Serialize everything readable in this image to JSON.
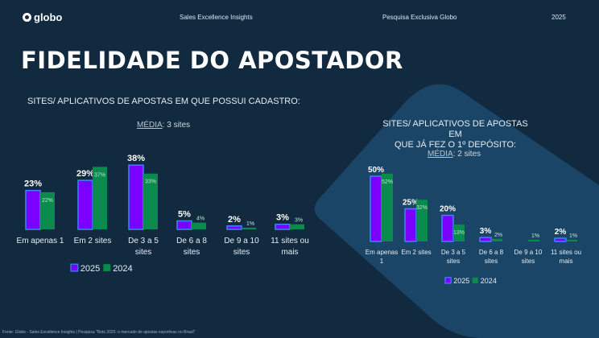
{
  "header": {
    "logo": "globo",
    "center": "Sales Excellence Insights",
    "right": "Pesquisa Exclusiva Globo",
    "year": "2025"
  },
  "title": "FIDELIDADE DO APOSTADOR",
  "colors": {
    "bg": "#112a40",
    "panel": "#1a4566",
    "c2025": "#7b00ff",
    "c2025_border": "#3b86ff",
    "c2024": "#0b8a4e"
  },
  "footer": "Fonte: Globo - Sales Excellence Insights | Pesquisa \"Bets 2025: o mercado de apostas esportivas no Brasil\"",
  "chart_data": [
    {
      "type": "bar",
      "title": "SITES/ APLICATIVOS DE APOSTAS EM QUE POSSUI CADASTRO:",
      "media_label": "MÉDIA",
      "media_value": ": 3 sites",
      "categories": [
        [
          "Em apenas 1"
        ],
        [
          "Em 2 sites"
        ],
        [
          "De 3 a 5",
          "sites"
        ],
        [
          "De 6 a 8",
          "sites"
        ],
        [
          "De 9 a 10",
          "sites"
        ],
        [
          "11 sites ou",
          "mais"
        ]
      ],
      "series": [
        {
          "name": "2025",
          "values": [
            23,
            29,
            38,
            5,
            2,
            3
          ]
        },
        {
          "name": "2024",
          "values": [
            22,
            37,
            33,
            4,
            1,
            3
          ]
        }
      ],
      "legend": "bottom"
    },
    {
      "type": "bar",
      "title": [
        "SITES/ APLICATIVOS DE APOSTAS EM",
        "QUE JÁ FEZ O 1º DEPÓSITO:"
      ],
      "media_label": "MÉDIA",
      "media_value": ": 2 sites",
      "categories": [
        [
          "Em apenas",
          "1"
        ],
        [
          "Em 2 sites"
        ],
        [
          "De 3 a 5",
          "sites"
        ],
        [
          "De 6 a 8",
          "sites"
        ],
        [
          "De 9 a 10",
          "sites"
        ],
        [
          "11 sites ou",
          "mais"
        ]
      ],
      "series": [
        {
          "name": "2025",
          "values": [
            50,
            25,
            20,
            3,
            null,
            2
          ]
        },
        {
          "name": "2024",
          "values": [
            52,
            32,
            13,
            2,
            1,
            1
          ]
        }
      ],
      "legend": "bottom"
    }
  ]
}
